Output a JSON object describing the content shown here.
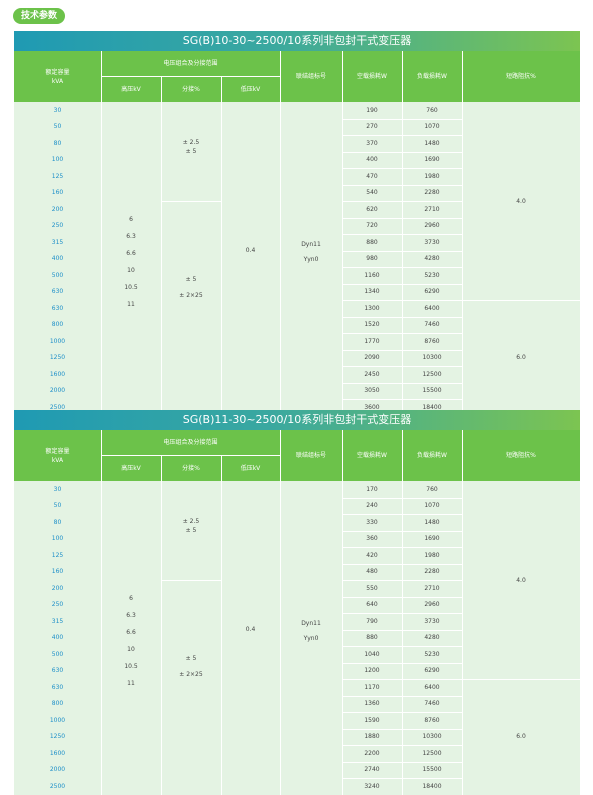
{
  "badge": "技术参数",
  "headers": {
    "capacity": [
      "额定容量",
      "kVA"
    ],
    "voltage_group": "电压组合及分接范围",
    "hv": "高压kV",
    "tap": "分接%",
    "lv": "低压kV",
    "vector": "联结组标号",
    "noload": "空载损耗W",
    "load": "负载损耗W",
    "impedance": "短路阻抗%"
  },
  "tables": [
    {
      "title": "SG(B)10-30~2500/10系列非包封干式变压器",
      "capacity": [
        "30",
        "50",
        "80",
        "100",
        "125",
        "160",
        "200",
        "250",
        "315",
        "400",
        "500",
        "630",
        "630",
        "800",
        "1000",
        "1250",
        "1600",
        "2000",
        "2500"
      ],
      "noload": [
        "190",
        "270",
        "370",
        "400",
        "470",
        "540",
        "620",
        "720",
        "880",
        "980",
        "1160",
        "1340",
        "1300",
        "1520",
        "1770",
        "2090",
        "2450",
        "3050",
        "3600"
      ],
      "load": [
        "760",
        "1070",
        "1480",
        "1690",
        "1980",
        "2280",
        "2710",
        "2960",
        "3730",
        "4280",
        "5230",
        "6290",
        "6400",
        "7460",
        "8760",
        "10300",
        "12500",
        "15500",
        "18400"
      ],
      "hv": [
        "6",
        "6.3",
        "6.6",
        "10",
        "10.5",
        "11"
      ],
      "tap_top": [
        "± 2.5",
        "± 5"
      ],
      "tap_bottom": [
        "± 5",
        "± 2×25"
      ],
      "lv": "0.4",
      "vector": [
        "Dyn11",
        "Yyn0"
      ],
      "impedance_top": "4.0",
      "impedance_bottom": "6.0"
    },
    {
      "title": "SG(B)11-30~2500/10系列非包封干式变压器",
      "capacity": [
        "30",
        "50",
        "80",
        "100",
        "125",
        "160",
        "200",
        "250",
        "315",
        "400",
        "500",
        "630",
        "630",
        "800",
        "1000",
        "1250",
        "1600",
        "2000",
        "2500"
      ],
      "noload": [
        "170",
        "240",
        "330",
        "360",
        "420",
        "480",
        "550",
        "640",
        "790",
        "880",
        "1040",
        "1200",
        "1170",
        "1360",
        "1590",
        "1880",
        "2200",
        "2740",
        "3240"
      ],
      "load": [
        "760",
        "1070",
        "1480",
        "1690",
        "1980",
        "2280",
        "2710",
        "2960",
        "3730",
        "4280",
        "5230",
        "6290",
        "6400",
        "7460",
        "8760",
        "10300",
        "12500",
        "15500",
        "18400"
      ],
      "hv": [
        "6",
        "6.3",
        "6.6",
        "10",
        "10.5",
        "11"
      ],
      "tap_top": [
        "± 2.5",
        "± 5"
      ],
      "tap_bottom": [
        "± 5",
        "± 2×25"
      ],
      "lv": "0.4",
      "vector": [
        "Dyn11",
        "Yyn0"
      ],
      "impedance_top": "4.0",
      "impedance_bottom": "6.0"
    }
  ]
}
